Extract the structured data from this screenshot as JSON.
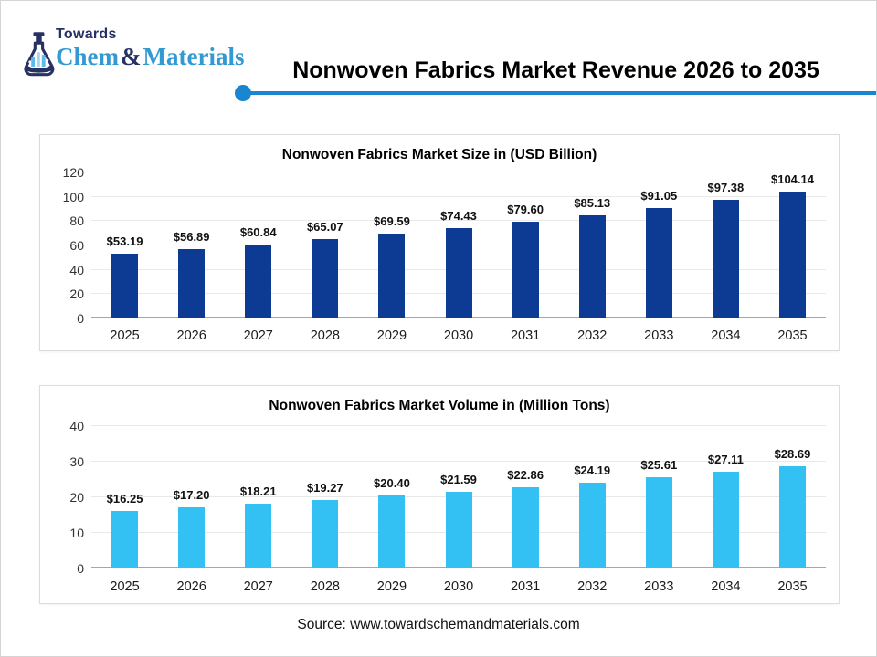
{
  "header": {
    "logo": {
      "towards": "Towards",
      "chem": "Chem",
      "ampersand": "&",
      "materials": "Materials",
      "navy_color": "#283163",
      "blue_color": "#3399d2"
    },
    "title": "Nonwoven Fabrics Market Revenue 2026 to 2035",
    "accent_color": "#1a86d0"
  },
  "chart_data": [
    {
      "type": "bar",
      "title": "Nonwoven Fabrics Market Size in (USD Billion)",
      "categories": [
        "2025",
        "2026",
        "2027",
        "2028",
        "2029",
        "2030",
        "2031",
        "2032",
        "2033",
        "2034",
        "2035"
      ],
      "values": [
        53.19,
        56.89,
        60.84,
        65.07,
        69.59,
        74.43,
        79.6,
        85.13,
        91.05,
        97.38,
        104.14
      ],
      "labels": [
        "$53.19",
        "$56.89",
        "$60.84",
        "$65.07",
        "$69.59",
        "$74.43",
        "$79.60",
        "$85.13",
        "$91.05",
        "$97.38",
        "$104.14"
      ],
      "xlabel": "",
      "ylabel": "",
      "ylim": [
        0,
        120
      ],
      "yticks": [
        0,
        20,
        40,
        60,
        80,
        100,
        120
      ],
      "grid": true,
      "legend": false,
      "bar_color": "#0d3b93"
    },
    {
      "type": "bar",
      "title": "Nonwoven Fabrics Market Volume in (Million Tons)",
      "categories": [
        "2025",
        "2026",
        "2027",
        "2028",
        "2029",
        "2030",
        "2031",
        "2032",
        "2033",
        "2034",
        "2035"
      ],
      "values": [
        16.25,
        17.2,
        18.21,
        19.27,
        20.4,
        21.59,
        22.86,
        24.19,
        25.61,
        27.11,
        28.69
      ],
      "labels": [
        "$16.25",
        "$17.20",
        "$18.21",
        "$19.27",
        "$20.40",
        "$21.59",
        "$22.86",
        "$24.19",
        "$25.61",
        "$27.11",
        "$28.69"
      ],
      "xlabel": "",
      "ylabel": "",
      "ylim": [
        0,
        40
      ],
      "yticks": [
        0,
        10,
        20,
        30,
        40
      ],
      "grid": true,
      "legend": false,
      "bar_color": "#33c1f3"
    }
  ],
  "footer": {
    "source": "Source: www.towardschemandmaterials.com"
  }
}
